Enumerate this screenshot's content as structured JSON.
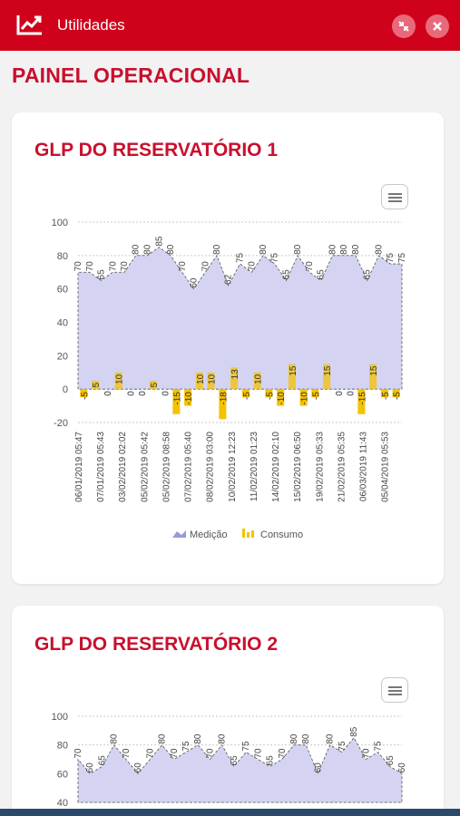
{
  "header": {
    "title": "Utilidades",
    "icons": [
      "chart-trend-icon",
      "shrink-arrows-icon",
      "close-icon"
    ],
    "background": "#d0021b"
  },
  "page": {
    "title": "PAINEL OPERACIONAL",
    "accent": "#c8102e"
  },
  "chart_data": [
    {
      "type": "area+bar",
      "title": "GLP DO RESERVATÓRIO 1",
      "ylim": [
        -20,
        100
      ],
      "yticks": [
        100,
        80,
        60,
        40,
        20,
        0,
        -20
      ],
      "x_tick_labels": [
        "06/01/2019 05:47",
        "07/01/2019 05:43",
        "03/02/2019 02:02",
        "05/02/2019 05:42",
        "05/02/2019 08:58",
        "07/02/2019 05:40",
        "08/02/2019 03:00",
        "10/02/2019 12:23",
        "11/02/2019 01:23",
        "14/02/2019 02:10",
        "15/02/2019 06:50",
        "19/02/2019 05:33",
        "21/02/2019 05:35",
        "06/03/2019 11:43",
        "05/04/2019 05:53"
      ],
      "series": [
        {
          "name": "Medição",
          "type": "area",
          "color": "#d4d4f2",
          "values": [
            70,
            70,
            65,
            70,
            70,
            80,
            80,
            85,
            80,
            70,
            60,
            70,
            80,
            62,
            75,
            70,
            80,
            75,
            65,
            80,
            70,
            65,
            80,
            80,
            80,
            65,
            80,
            75,
            75
          ]
        },
        {
          "name": "Consumo",
          "type": "bar",
          "color": "#f5c200",
          "values": [
            -5,
            5,
            0,
            10,
            0,
            0,
            5,
            0,
            -15,
            -10,
            10,
            10,
            -18,
            13,
            -5,
            10,
            -5,
            -10,
            15,
            -10,
            -5,
            15,
            0,
            0,
            -15,
            15,
            -5,
            -5
          ]
        }
      ],
      "legend": [
        "Medição",
        "Consumo"
      ],
      "legend_placement": "bottom-center"
    },
    {
      "type": "area",
      "title": "GLP DO RESERVATÓRIO 2",
      "ylim": [
        40,
        100
      ],
      "yticks": [
        100,
        80,
        60,
        40
      ],
      "series": [
        {
          "name": "Medição",
          "type": "area",
          "color": "#d4d4f2",
          "values": [
            70,
            60,
            65,
            80,
            70,
            60,
            70,
            80,
            70,
            75,
            80,
            70,
            80,
            65,
            75,
            70,
            65,
            70,
            80,
            80,
            60,
            80,
            75,
            85,
            70,
            75,
            65,
            60
          ]
        }
      ]
    }
  ]
}
